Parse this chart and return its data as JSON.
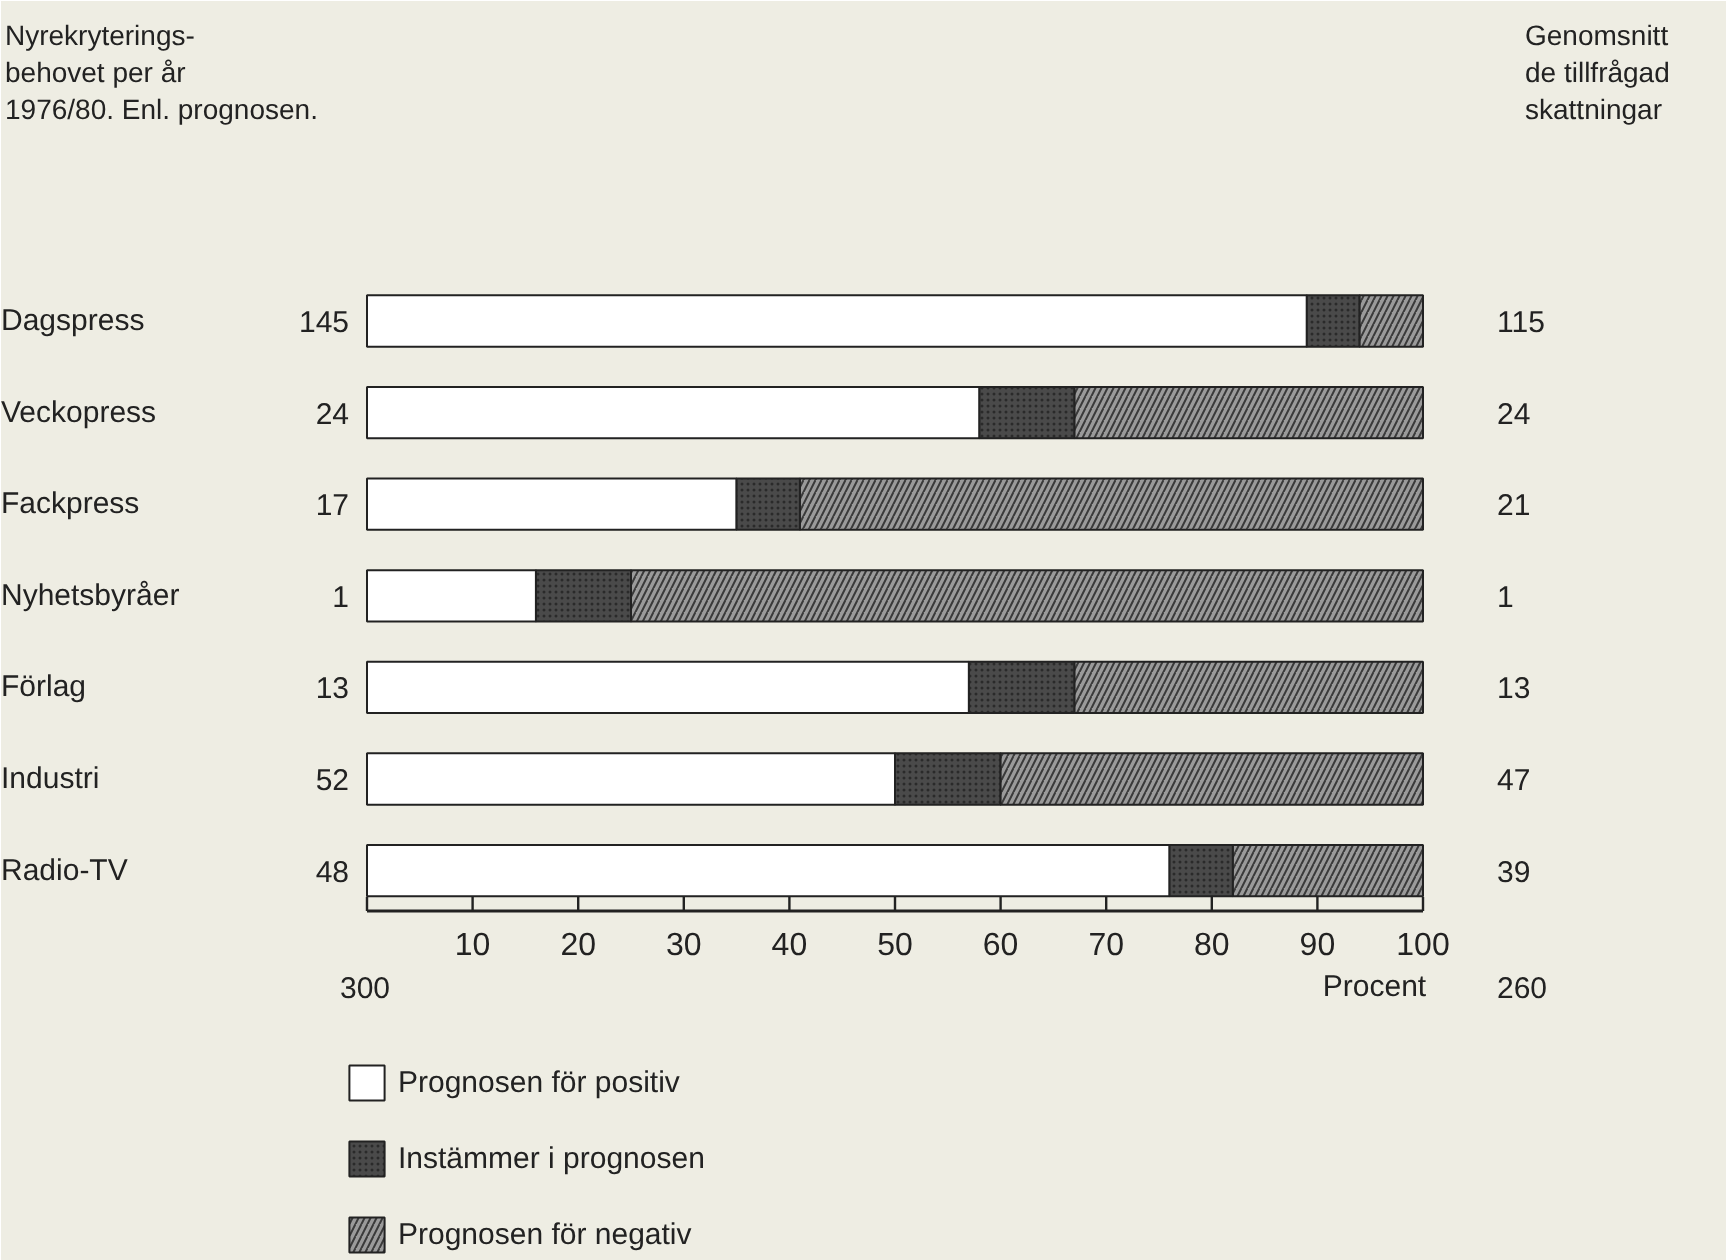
{
  "chart_data": {
    "type": "bar",
    "orientation": "horizontal",
    "stacked": true,
    "categories": [
      "Dagspress",
      "Veckopress",
      "Fackpress",
      "Nyhetsbyråer",
      "Förlag",
      "Industri",
      "Radio-TV"
    ],
    "series": [
      {
        "name": "Prognosen för positiv",
        "color": "#ffffff",
        "values": [
          89,
          58,
          35,
          16,
          57,
          50,
          76
        ]
      },
      {
        "name": "Instämmer i prognosen",
        "color": "#4a4a4a",
        "values": [
          5,
          9,
          6,
          9,
          10,
          10,
          6
        ]
      },
      {
        "name": "Prognosen för negativ",
        "color": "#9a9a9a",
        "values": [
          6,
          33,
          59,
          75,
          33,
          40,
          18
        ]
      }
    ],
    "xlim": [
      0,
      100
    ],
    "xticks": [
      {
        "value": 0,
        "label": null
      },
      10,
      20,
      30,
      40,
      50,
      60,
      70,
      80,
      90,
      100
    ],
    "xlabel": "Procent",
    "legend": "bottom left",
    "grid": false,
    "annotations": [
      "Nyrekryterings-\nbehovet per år\n1976/80. Enl. prognosen.",
      "Genomsnitt\nde tillfrågad\nskattningar",
      "300",
      "260",
      "145",
      "24",
      "17",
      "1",
      "13",
      "52",
      "48",
      "115",
      "24",
      "21",
      "1",
      "13",
      "47",
      "39"
    ]
  }
}
